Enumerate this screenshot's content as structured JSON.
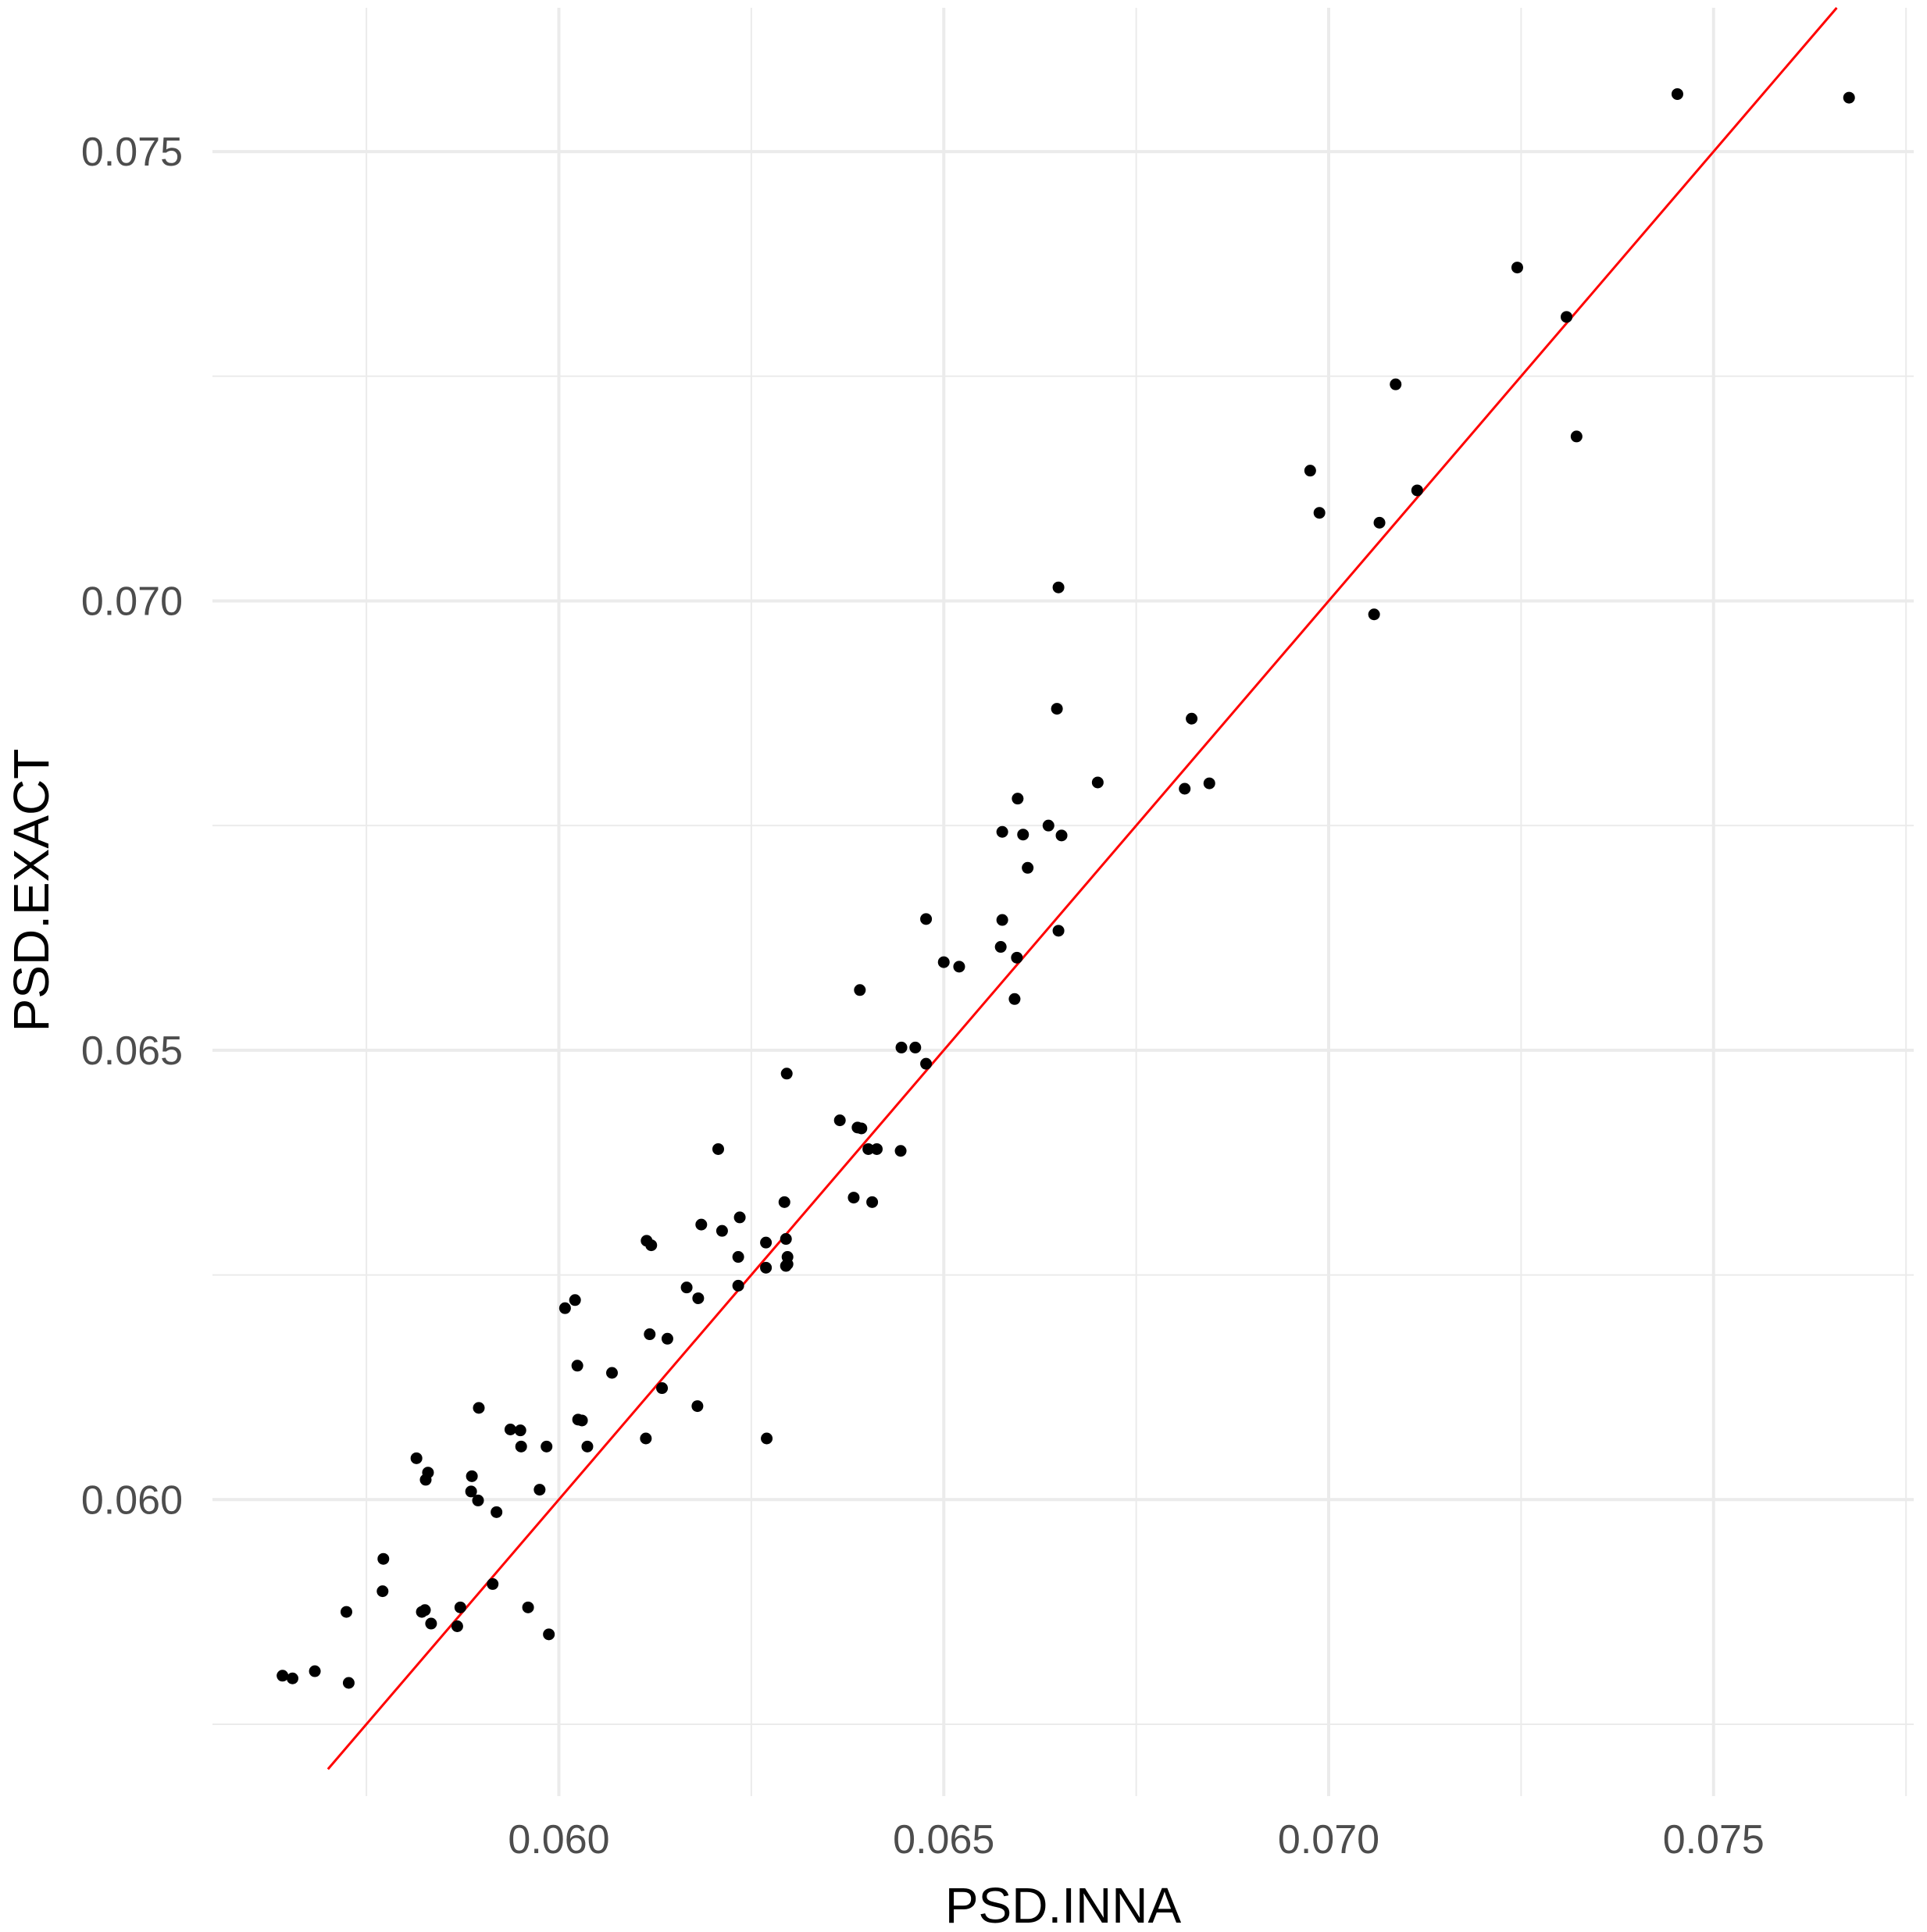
{
  "chart_data": {
    "type": "scatter",
    "xlabel": "PSD.INNA",
    "ylabel": "PSD.EXACT",
    "xlim": [
      0.0555,
      0.0776
    ],
    "ylim": [
      0.0567,
      0.0766
    ],
    "x_ticks": [
      0.06,
      0.065,
      0.07,
      0.075
    ],
    "y_ticks": [
      0.06,
      0.065,
      0.07,
      0.075
    ],
    "x_tick_labels": [
      "0.060",
      "0.065",
      "0.070",
      "0.075"
    ],
    "y_tick_labels": [
      "0.060",
      "0.065",
      "0.070",
      "0.075"
    ],
    "grid": true,
    "reference_line": {
      "type": "identity",
      "slope": 1,
      "intercept": 0,
      "color": "#ff0000"
    },
    "point_color": "#000000",
    "points": [
      [
        0.07453,
        0.07564
      ],
      [
        0.07676,
        0.0756
      ],
      [
        0.07245,
        0.07371
      ],
      [
        0.07309,
        0.07316
      ],
      [
        0.07087,
        0.07241
      ],
      [
        0.07322,
        0.07183
      ],
      [
        0.06976,
        0.07145
      ],
      [
        0.07115,
        0.07123
      ],
      [
        0.06988,
        0.07098
      ],
      [
        0.07066,
        0.07087
      ],
      [
        0.07059,
        0.06985
      ],
      [
        0.06649,
        0.07015
      ],
      [
        0.06647,
        0.0688
      ],
      [
        0.06822,
        0.06869
      ],
      [
        0.067,
        0.06798
      ],
      [
        0.06845,
        0.06797
      ],
      [
        0.06813,
        0.06791
      ],
      [
        0.06596,
        0.0678
      ],
      [
        0.06636,
        0.0675
      ],
      [
        0.06576,
        0.06743
      ],
      [
        0.06603,
        0.0674
      ],
      [
        0.06653,
        0.06739
      ],
      [
        0.06609,
        0.06703
      ],
      [
        0.06477,
        0.06646
      ],
      [
        0.06576,
        0.06645
      ],
      [
        0.06649,
        0.06633
      ],
      [
        0.06574,
        0.06615
      ],
      [
        0.06595,
        0.06603
      ],
      [
        0.065,
        0.06598
      ],
      [
        0.0652,
        0.06593
      ],
      [
        0.06391,
        0.06567
      ],
      [
        0.06592,
        0.06557
      ],
      [
        0.06445,
        0.06503
      ],
      [
        0.06463,
        0.06503
      ],
      [
        0.06477,
        0.06485
      ],
      [
        0.06296,
        0.06474
      ],
      [
        0.06365,
        0.06422
      ],
      [
        0.06388,
        0.06414
      ],
      [
        0.06393,
        0.06413
      ],
      [
        0.06207,
        0.0639
      ],
      [
        0.06413,
        0.0639
      ],
      [
        0.06402,
        0.0639
      ],
      [
        0.06444,
        0.06388
      ],
      [
        0.06383,
        0.06336
      ],
      [
        0.06407,
        0.06331
      ],
      [
        0.06293,
        0.06331
      ],
      [
        0.06235,
        0.06314
      ],
      [
        0.06185,
        0.06306
      ],
      [
        0.06212,
        0.06299
      ],
      [
        0.06295,
        0.0629
      ],
      [
        0.06269,
        0.06286
      ],
      [
        0.06114,
        0.06288
      ],
      [
        0.0612,
        0.06283
      ],
      [
        0.06233,
        0.0627
      ],
      [
        0.06297,
        0.0627
      ],
      [
        0.06297,
        0.06262
      ],
      [
        0.06269,
        0.06258
      ],
      [
        0.06295,
        0.0626
      ],
      [
        0.06166,
        0.06236
      ],
      [
        0.06233,
        0.06238
      ],
      [
        0.06181,
        0.06224
      ],
      [
        0.06021,
        0.06222
      ],
      [
        0.06008,
        0.06213
      ],
      [
        0.06118,
        0.06184
      ],
      [
        0.06141,
        0.06179
      ],
      [
        0.06024,
        0.06149
      ],
      [
        0.06069,
        0.06141
      ],
      [
        0.06134,
        0.06124
      ],
      [
        0.05896,
        0.06102
      ],
      [
        0.0618,
        0.06104
      ],
      [
        0.05937,
        0.06078
      ],
      [
        0.0595,
        0.06077
      ],
      [
        0.06025,
        0.06089
      ],
      [
        0.0603,
        0.06088
      ],
      [
        0.05951,
        0.06059
      ],
      [
        0.05984,
        0.06059
      ],
      [
        0.06037,
        0.06059
      ],
      [
        0.06113,
        0.06068
      ],
      [
        0.0627,
        0.06068
      ],
      [
        0.05815,
        0.06046
      ],
      [
        0.0583,
        0.0603
      ],
      [
        0.05827,
        0.06022
      ],
      [
        0.05887,
        0.06026
      ],
      [
        0.05975,
        0.06011
      ],
      [
        0.05886,
        0.06009
      ],
      [
        0.05895,
        0.05999
      ],
      [
        0.05919,
        0.05986
      ],
      [
        0.05772,
        0.05934
      ],
      [
        0.05771,
        0.05898
      ],
      [
        0.05914,
        0.05906
      ],
      [
        0.05724,
        0.05875
      ],
      [
        0.05822,
        0.05875
      ],
      [
        0.05826,
        0.05877
      ],
      [
        0.05872,
        0.0588
      ],
      [
        0.0596,
        0.0588
      ],
      [
        0.05834,
        0.05862
      ],
      [
        0.05868,
        0.05859
      ],
      [
        0.05987,
        0.0585
      ],
      [
        0.05641,
        0.05804
      ],
      [
        0.05654,
        0.05801
      ],
      [
        0.05683,
        0.05809
      ],
      [
        0.05727,
        0.05796
      ]
    ]
  }
}
